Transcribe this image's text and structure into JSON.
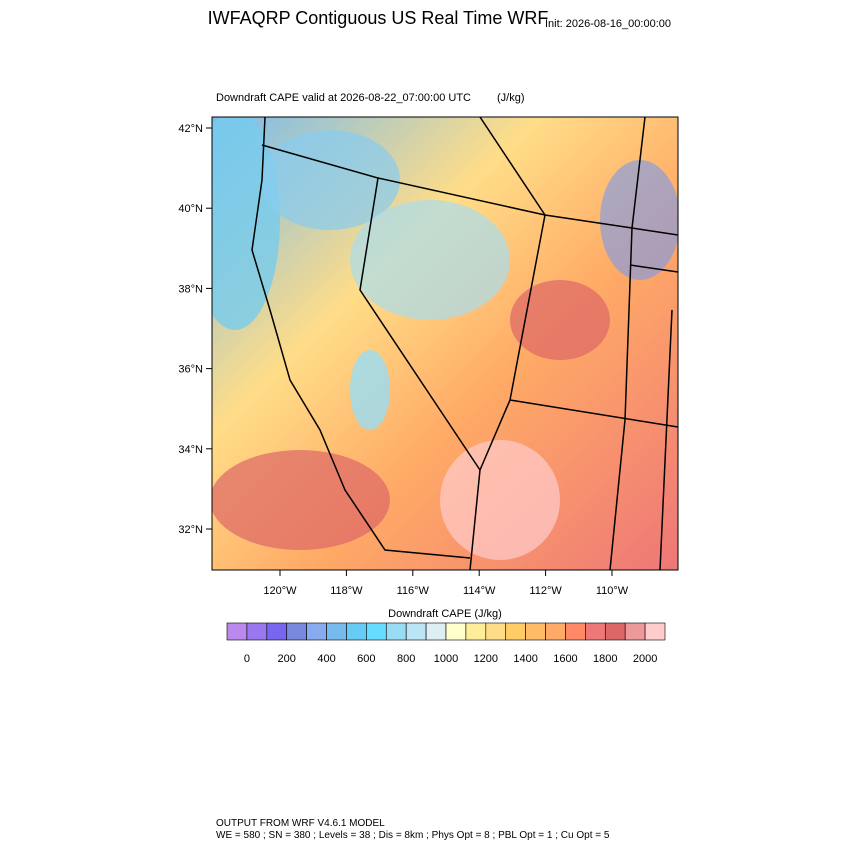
{
  "header": {
    "title": "IWFAQRP Contiguous US Real Time WRF",
    "init": "Init: 2026-08-16_00:00:00"
  },
  "map": {
    "subtitle": "Downdraft CAPE valid at 2026-08-22_07:00:00 UTC",
    "units": "(J/kg)",
    "lat_labels": [
      "42°N",
      "40°N",
      "38°N",
      "36°N",
      "34°N",
      "32°N"
    ],
    "lon_labels": [
      "120°W",
      "118°W",
      "116°W",
      "114°W",
      "112°W",
      "110°W"
    ]
  },
  "colorbar": {
    "title": "Downdraft CAPE  (J/kg)",
    "colors": [
      "#bb88ee",
      "#9977ee",
      "#7766ee",
      "#7788dd",
      "#88aaee",
      "#77bbee",
      "#66ccf5",
      "#66ddff",
      "#99ddf5",
      "#bbe5f5",
      "#ddeef5",
      "#ffffcc",
      "#ffee99",
      "#ffdd88",
      "#ffcc66",
      "#ffbb66",
      "#ffaa66",
      "#ff8866",
      "#ee7777",
      "#dd6666",
      "#ee9999",
      "#ffcccc"
    ],
    "ticks": [
      0,
      200,
      400,
      600,
      800,
      1000,
      1200,
      1400,
      1600,
      1800,
      2000
    ]
  },
  "footer": {
    "line1": "OUTPUT FROM WRF V4.6.1 MODEL",
    "line2": "WE = 580 ; SN = 380 ; Levels = 38 ; Dis = 8km ; Phys Opt = 8 ; PBL Opt = 1 ; Cu Opt = 5"
  }
}
